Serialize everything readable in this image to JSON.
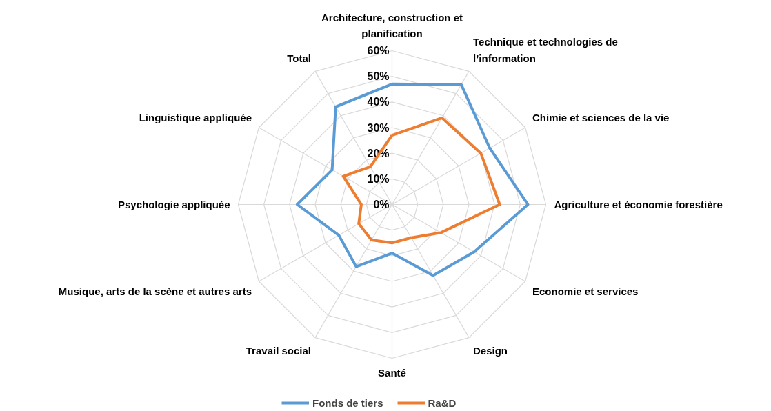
{
  "chart_data": {
    "type": "radar",
    "categories": [
      "Architecture, construction et planification",
      "Technique et technologies de l’information",
      "Chimie et sciences de la vie",
      "Agriculture et économie forestière",
      "Economie et services",
      "Design",
      "Santé",
      "Travail social",
      "Musique, arts de la scène et autres arts",
      "Psychologie appliquée",
      "Linguistique appliquée",
      "Total"
    ],
    "series": [
      {
        "name": "Fonds de tiers",
        "color": "#5b9bd5",
        "values": [
          47,
          54,
          44,
          53,
          37,
          32,
          19,
          28,
          24,
          37,
          27,
          44
        ]
      },
      {
        "name": "Ra&D",
        "color": "#ed7d31",
        "values": [
          27,
          39,
          40,
          42,
          22,
          15,
          15,
          16,
          15,
          12,
          22,
          17
        ]
      }
    ],
    "ylim": [
      0,
      60
    ],
    "yticks": [
      {
        "value": 0,
        "label": "0%"
      },
      {
        "value": 10,
        "label": "10%"
      },
      {
        "value": 20,
        "label": "20%"
      },
      {
        "value": 30,
        "label": "30%"
      },
      {
        "value": 40,
        "label": "40%"
      },
      {
        "value": 50,
        "label": "50%"
      },
      {
        "value": 60,
        "label": "60%"
      }
    ],
    "grid": true,
    "legend": "bottom",
    "marker": "none",
    "line_style": "solid"
  }
}
